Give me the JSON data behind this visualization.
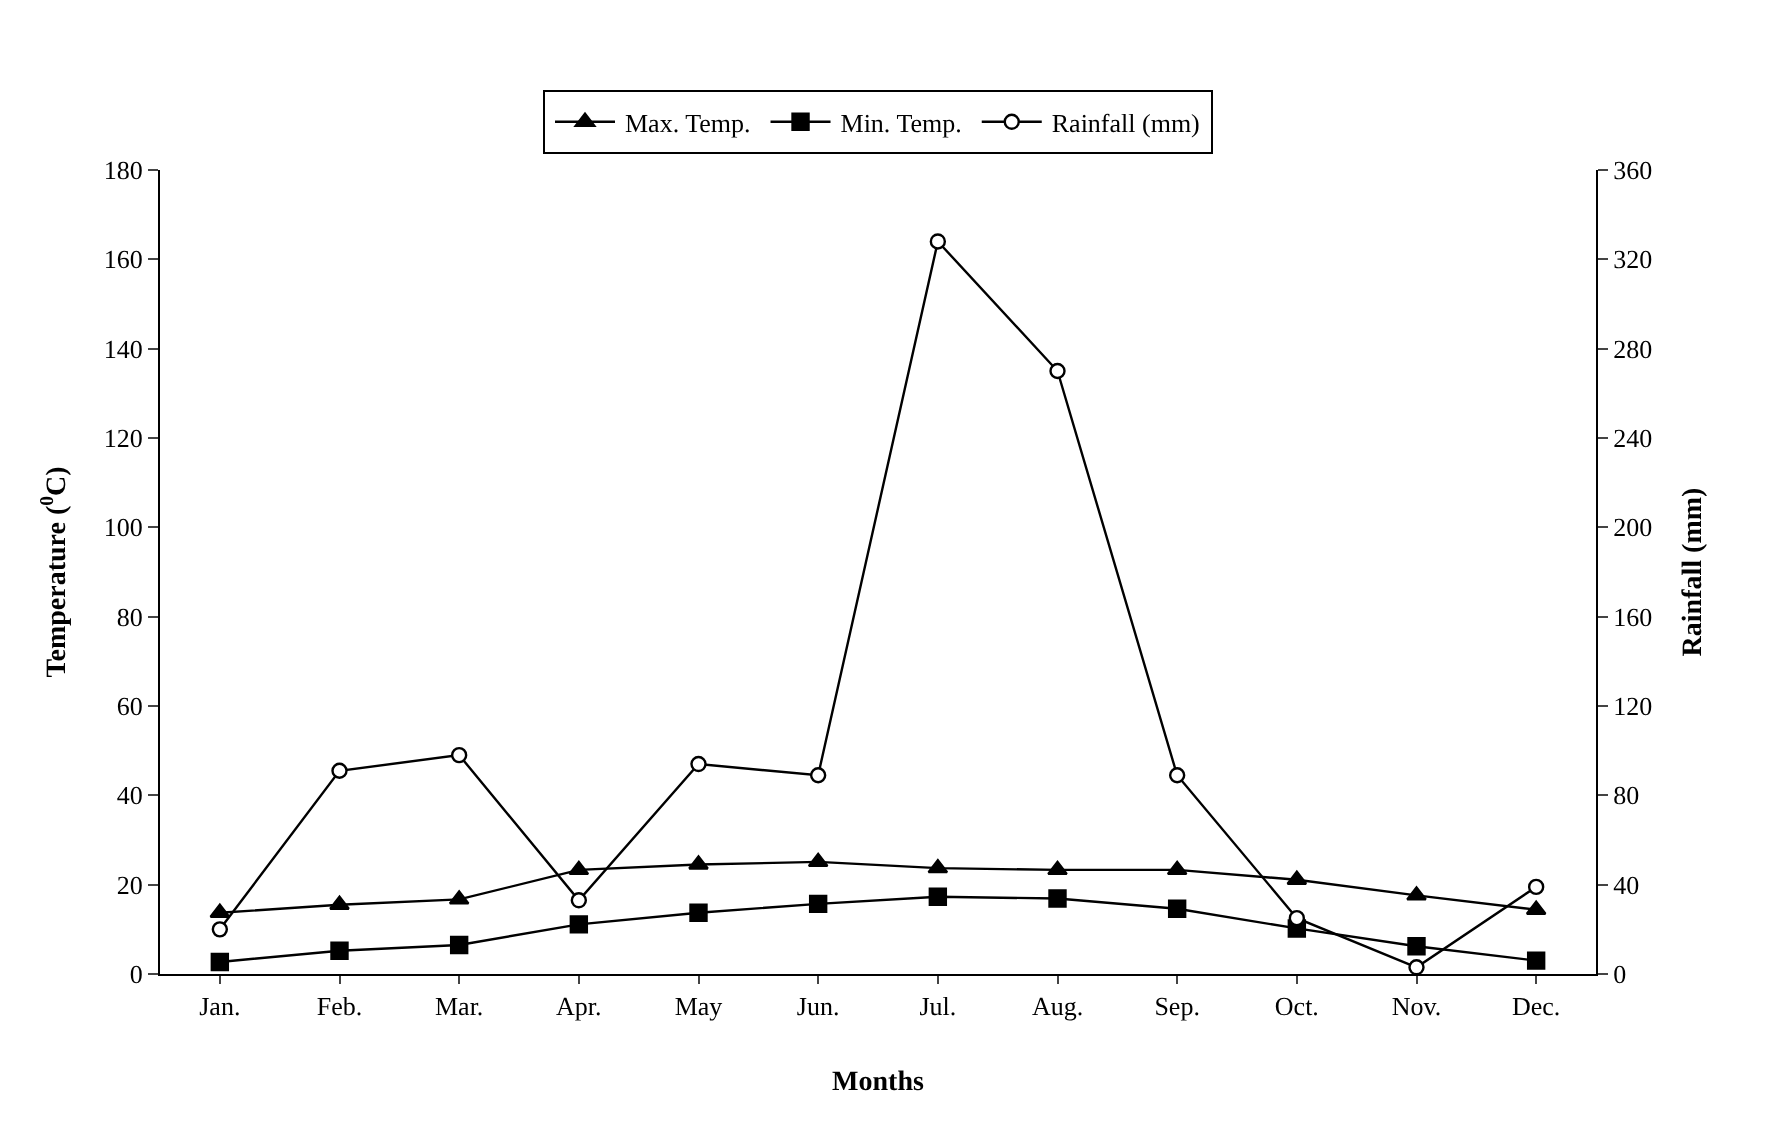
{
  "chart_data": {
    "type": "line",
    "categories": [
      "Jan.",
      "Feb.",
      "Mar.",
      "Apr.",
      "May",
      "Jun.",
      "Jul.",
      "Aug.",
      "Sep.",
      "Oct.",
      "Nov.",
      "Dec."
    ],
    "series": [
      {
        "name": "Max. Temp.",
        "color": "#000000",
        "marker": "triangle",
        "values": [
          13.7,
          15.5,
          16.7,
          23.3,
          24.5,
          25.1,
          23.7,
          23.3,
          23.3,
          21.1,
          17.6,
          14.4
        ]
      },
      {
        "name": "Min. Temp.",
        "color": "#000000",
        "marker": "square",
        "values": [
          2.7,
          5.2,
          6.5,
          11.1,
          13.7,
          15.7,
          17.3,
          16.9,
          14.6,
          10.2,
          6.2,
          3.0
        ]
      },
      {
        "name": "Rainfall (mm)",
        "color": "#000000",
        "marker": "circle",
        "axis": "y2",
        "values": [
          20,
          91,
          98,
          33,
          94,
          89,
          328,
          270,
          89,
          25,
          3,
          39
        ]
      }
    ],
    "xlabel": "Months",
    "ylabel": "Temperature ($^{0}$C)",
    "y2label": "Rainfall (mm)",
    "ylim": [
      0,
      180
    ],
    "yticks": [
      0,
      20,
      40,
      60,
      80,
      100,
      120,
      140,
      160,
      180
    ],
    "y2lim": [
      0,
      360
    ],
    "y2ticks": [
      0,
      40,
      80,
      120,
      160,
      200,
      240,
      280,
      320,
      360
    ],
    "grid": false,
    "legend": "top",
    "line_style": "solid"
  }
}
